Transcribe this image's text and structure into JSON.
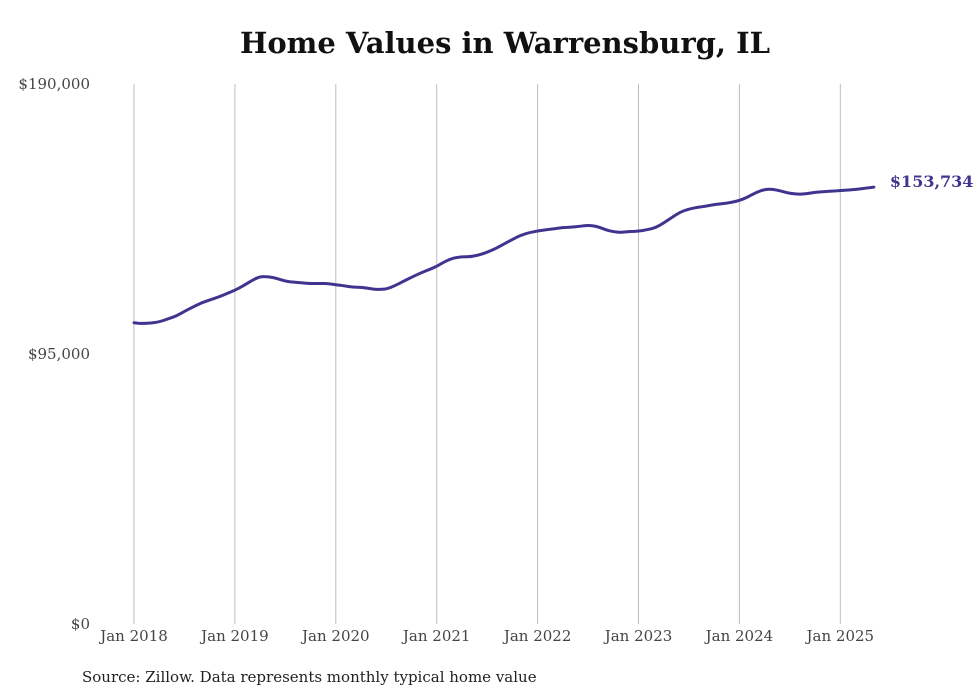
{
  "chart_data": {
    "type": "line",
    "title": "Home Values in Warrensburg, IL",
    "xlabel": "",
    "ylabel": "",
    "x_tick_labels": [
      "Jan 2018",
      "Jan 2019",
      "Jan 2020",
      "Jan 2021",
      "Jan 2022",
      "Jan 2023",
      "Jan 2024",
      "Jan 2025"
    ],
    "x_tick_years": [
      2018,
      2019,
      2020,
      2021,
      2022,
      2023,
      2024,
      2025
    ],
    "x_range": [
      "2018-01",
      "2025-05"
    ],
    "y_tick_labels": [
      "$0",
      "$95,000",
      "$190,000"
    ],
    "y_tick_values": [
      0,
      95000,
      190000
    ],
    "ylim": [
      0,
      190000
    ],
    "grid": "vertical lines at each January",
    "line_color": "#3f3590",
    "end_label": "$153,734",
    "series": [
      {
        "x": [
          "2018-01",
          "2018-02",
          "2018-03",
          "2018-04",
          "2018-05",
          "2018-06",
          "2018-07",
          "2018-08",
          "2018-09",
          "2018-10",
          "2018-11",
          "2018-12",
          "2019-01",
          "2019-02",
          "2019-03",
          "2019-04",
          "2019-05",
          "2019-06",
          "2019-07",
          "2019-08",
          "2019-09",
          "2019-10",
          "2019-11",
          "2019-12",
          "2020-01",
          "2020-02",
          "2020-03",
          "2020-04",
          "2020-05",
          "2020-06",
          "2020-07",
          "2020-08",
          "2020-09",
          "2020-10",
          "2020-11",
          "2020-12",
          "2021-01",
          "2021-02",
          "2021-03",
          "2021-04",
          "2021-05",
          "2021-06",
          "2021-07",
          "2021-08",
          "2021-09",
          "2021-10",
          "2021-11",
          "2021-12",
          "2022-01",
          "2022-02",
          "2022-03",
          "2022-04",
          "2022-05",
          "2022-06",
          "2022-07",
          "2022-08",
          "2022-09",
          "2022-10",
          "2022-11",
          "2022-12",
          "2023-01",
          "2023-02",
          "2023-03",
          "2023-04",
          "2023-05",
          "2023-06",
          "2023-07",
          "2023-08",
          "2023-09",
          "2023-10",
          "2023-11",
          "2023-12",
          "2024-01",
          "2024-02",
          "2024-03",
          "2024-04",
          "2024-05",
          "2024-06",
          "2024-07",
          "2024-08",
          "2024-09",
          "2024-10",
          "2024-11",
          "2024-12",
          "2025-01",
          "2025-02",
          "2025-03",
          "2025-04",
          "2025-05"
        ],
        "values": [
          106000,
          105700,
          105900,
          106300,
          107300,
          108300,
          110000,
          111500,
          113000,
          114000,
          115000,
          116200,
          117400,
          119000,
          120800,
          122300,
          122200,
          121600,
          120600,
          120300,
          120000,
          119800,
          119800,
          119800,
          119400,
          119000,
          118500,
          118500,
          118000,
          117700,
          117800,
          119000,
          120500,
          122000,
          123400,
          124600,
          125800,
          127600,
          128800,
          129200,
          129200,
          129800,
          130800,
          132100,
          133700,
          135300,
          136800,
          137700,
          138300,
          138700,
          139100,
          139500,
          139600,
          139900,
          140300,
          140000,
          138800,
          138000,
          137800,
          138100,
          138200,
          138700,
          139400,
          141100,
          143100,
          145000,
          146000,
          146600,
          147000,
          147600,
          147900,
          148300,
          149000,
          150200,
          151900,
          152900,
          153000,
          152300,
          151500,
          151200,
          151400,
          151900,
          152100,
          152300,
          152500,
          152700,
          153000,
          153300,
          153734
        ]
      }
    ]
  },
  "source_note": "Source: Zillow. Data represents monthly typical home value"
}
